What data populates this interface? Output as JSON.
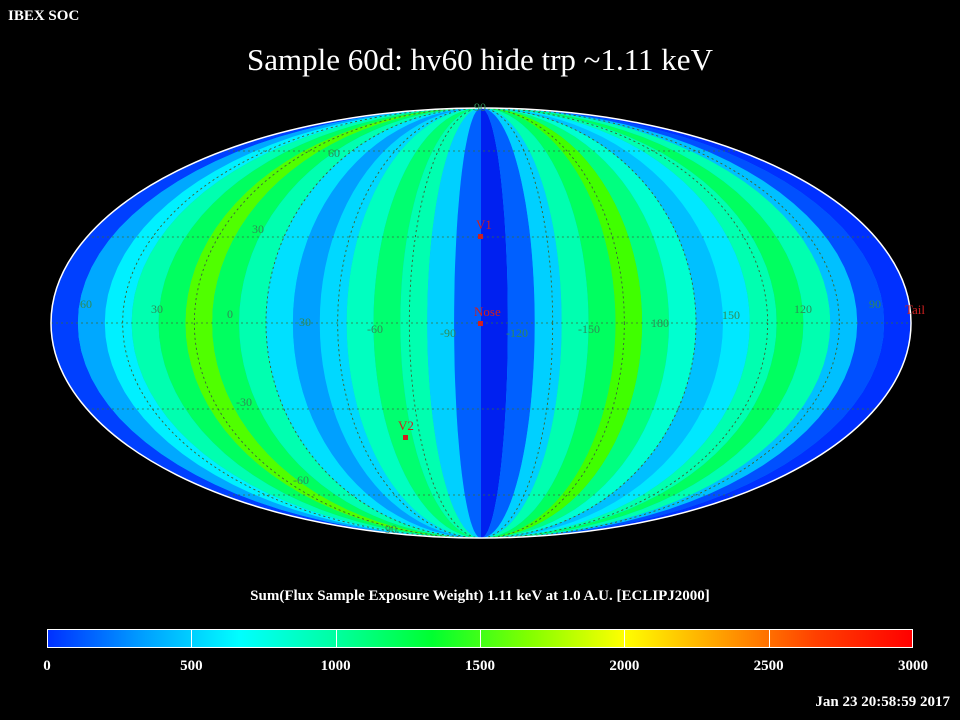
{
  "header": {
    "org": "IBEX SOC",
    "title": "Sample 60d: hv60 hide trp ~1.11 keV"
  },
  "map": {
    "projection": "mollweide",
    "lat_labels": [
      "60",
      "30",
      "-30",
      "-60",
      "90",
      "90"
    ],
    "lon_labels": [
      "60",
      "30",
      "0",
      "-30",
      "-60",
      "-90",
      "-120",
      "-150",
      "180",
      "150",
      "120",
      "90"
    ],
    "markers": {
      "v1": "V1",
      "nose": "Nose",
      "v2": "V2",
      "tail": "Tail"
    },
    "marker_color": "#d02020",
    "grid_color": "#2e8b57"
  },
  "colorbar": {
    "title": "Sum(Flux Sample Exposure Weight)  1.11 keV at 1.0 A.U. [ECLIPJ2000]",
    "min": 0,
    "max": 3000,
    "ticks": [
      "0",
      "500",
      "1000",
      "1500",
      "2000",
      "2500",
      "3000"
    ],
    "stops": [
      "#0030ff",
      "#00a0ff",
      "#00ffff",
      "#00ffa0",
      "#00ff30",
      "#80ff00",
      "#ffff00",
      "#ffa000",
      "#ff4000",
      "#ff0000"
    ]
  },
  "footer": {
    "timestamp": "Jan 23 20:58:59 2017"
  }
}
